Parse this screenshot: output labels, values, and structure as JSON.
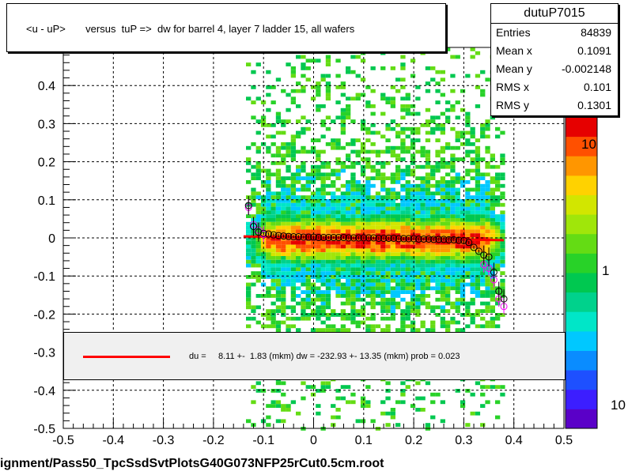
{
  "title": "<u - uP>       versus  tuP =>  dw for barrel 4, layer 7 ladder 15, all wafers",
  "stats": {
    "name": "dutuP7015",
    "rows": [
      {
        "key": "Entries",
        "value": "84839"
      },
      {
        "key": "Mean x",
        "value": "0.1091"
      },
      {
        "key": "Mean y",
        "value": "-0.002148"
      },
      {
        "key": "RMS x",
        "value": "0.101"
      },
      {
        "key": "RMS y",
        "value": "0.1301"
      }
    ]
  },
  "legend": {
    "text": "du =     8.11 +-  1.83 (mkm) dw = -232.93 +- 13.35 (mkm) prob = 0.023",
    "line_color": "#ff0000"
  },
  "footer": "ignment/Pass50_TpcSsdSvtPlotsG40G073NFP25rCut0.5cm.root",
  "colorbar": {
    "labels": [
      "10",
      "1",
      "10"
    ]
  },
  "chart_data": {
    "type": "heatmap",
    "xlim": [
      -0.5,
      0.5
    ],
    "ylim": [
      -0.5,
      0.5
    ],
    "x_ticks": [
      -0.5,
      -0.4,
      -0.3,
      -0.2,
      -0.1,
      0,
      0.1,
      0.2,
      0.3,
      0.4,
      0.5
    ],
    "x_tick_labels": [
      "-0.5",
      "-0.4",
      "-0.3",
      "-0.2",
      "-0.1",
      "0",
      "0.1",
      "0.2",
      "0.3",
      "0.4",
      "0.5"
    ],
    "y_ticks": [
      -0.5,
      -0.4,
      -0.3,
      -0.2,
      -0.1,
      0,
      0.1,
      0.2,
      0.3,
      0.4
    ],
    "y_tick_labels": [
      "-0.5",
      "-0.4",
      "-0.3",
      "-0.2",
      "-0.1",
      "0",
      "0.1",
      "0.2",
      "0.3",
      "0.4"
    ],
    "grid": true,
    "log_z": true,
    "density_region": {
      "x": [
        -0.13,
        0.38
      ],
      "y_rms": 0.13
    },
    "profile_black": {
      "x": [
        -0.13,
        -0.12,
        -0.11,
        -0.1,
        -0.09,
        -0.08,
        -0.07,
        -0.06,
        -0.05,
        -0.04,
        -0.03,
        -0.02,
        -0.01,
        0.0,
        0.01,
        0.02,
        0.03,
        0.04,
        0.05,
        0.06,
        0.07,
        0.08,
        0.09,
        0.1,
        0.11,
        0.12,
        0.13,
        0.14,
        0.15,
        0.16,
        0.17,
        0.18,
        0.19,
        0.2,
        0.21,
        0.22,
        0.23,
        0.24,
        0.25,
        0.26,
        0.27,
        0.28,
        0.29,
        0.3,
        0.31,
        0.32,
        0.33,
        0.34,
        0.35,
        0.36,
        0.37,
        0.38
      ],
      "y": [
        0.085,
        0.03,
        0.015,
        0.012,
        0.01,
        0.008,
        0.006,
        0.005,
        0.004,
        0.003,
        0.003,
        0.002,
        0.002,
        0.002,
        0.001,
        0.001,
        0.001,
        0.001,
        0.001,
        0.001,
        0.0,
        0.0,
        0.0,
        0.0,
        0.0,
        0.0,
        -0.001,
        -0.001,
        -0.001,
        -0.001,
        -0.002,
        -0.002,
        -0.002,
        -0.002,
        -0.003,
        -0.003,
        -0.003,
        -0.004,
        -0.004,
        -0.004,
        -0.005,
        -0.005,
        -0.006,
        -0.007,
        -0.012,
        -0.025,
        -0.035,
        -0.045,
        -0.05,
        -0.09,
        -0.14,
        -0.16
      ]
    },
    "profile_magenta": {
      "x": [
        -0.13,
        -0.12,
        -0.11,
        -0.1,
        0.34,
        0.35,
        0.36,
        0.37,
        0.38
      ],
      "y": [
        0.08,
        0.035,
        0.02,
        0.01,
        -0.07,
        -0.08,
        -0.11,
        -0.16,
        -0.18
      ]
    },
    "fit_line": {
      "x": [
        -0.14,
        0.38
      ],
      "y": [
        0.004,
        -0.006
      ]
    }
  }
}
